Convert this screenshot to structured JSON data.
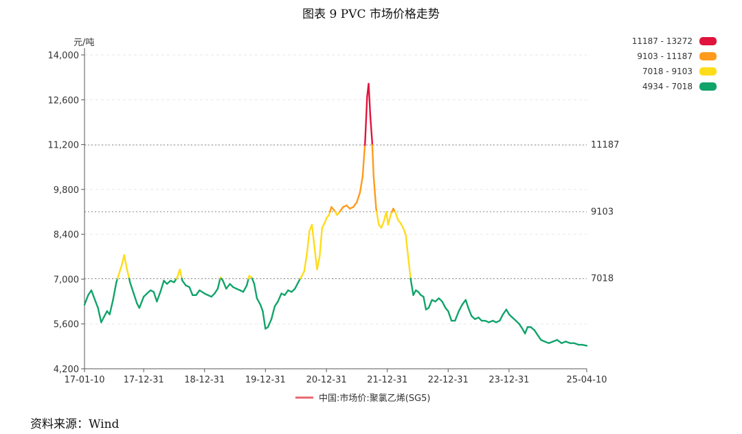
{
  "title": "图表 9    PVC 市场价格走势",
  "source": "资料来源：Wind",
  "chart_data": {
    "type": "line",
    "unit_label": "元/吨",
    "xlabel": "",
    "ylabel": "",
    "ylim": [
      4200,
      14000
    ],
    "yticks": [
      4200,
      5600,
      7000,
      8400,
      9800,
      11200,
      12600,
      14000
    ],
    "ytick_labels": [
      "4,200",
      "5,600",
      "7,000",
      "8,400",
      "9,800",
      "11,200",
      "12,600",
      "14,000"
    ],
    "x_range": [
      "2017-01-10",
      "2025-04-10"
    ],
    "xticks": [
      "2017-01-10",
      "2017-12-31",
      "2018-12-31",
      "2019-12-31",
      "2020-12-31",
      "2021-12-31",
      "2022-12-31",
      "2023-12-31",
      "2025-04-10"
    ],
    "xtick_labels": [
      "17-01-10",
      "17-12-31",
      "18-12-31",
      "19-12-31",
      "20-12-31",
      "21-12-31",
      "22-12-31",
      "23-12-31",
      "25-04-10"
    ],
    "grid": true,
    "legend_placement": "bottom",
    "series": [
      {
        "name": "中国:市场价:聚氯乙烯(SG5)",
        "color": "#e8646e",
        "points": [
          [
            "2017-01-10",
            6200
          ],
          [
            "2017-02-01",
            6500
          ],
          [
            "2017-02-20",
            6650
          ],
          [
            "2017-03-10",
            6400
          ],
          [
            "2017-04-01",
            6100
          ],
          [
            "2017-04-20",
            5650
          ],
          [
            "2017-05-10",
            5850
          ],
          [
            "2017-05-25",
            6000
          ],
          [
            "2017-06-10",
            5900
          ],
          [
            "2017-06-30",
            6350
          ],
          [
            "2017-07-20",
            6900
          ],
          [
            "2017-08-10",
            7250
          ],
          [
            "2017-08-25",
            7500
          ],
          [
            "2017-09-05",
            7750
          ],
          [
            "2017-09-20",
            7350
          ],
          [
            "2017-10-10",
            6900
          ],
          [
            "2017-11-01",
            6550
          ],
          [
            "2017-11-20",
            6250
          ],
          [
            "2017-12-05",
            6100
          ],
          [
            "2017-12-31",
            6450
          ],
          [
            "2018-01-20",
            6550
          ],
          [
            "2018-02-10",
            6650
          ],
          [
            "2018-03-01",
            6600
          ],
          [
            "2018-03-20",
            6300
          ],
          [
            "2018-04-10",
            6600
          ],
          [
            "2018-05-01",
            6950
          ],
          [
            "2018-05-20",
            6850
          ],
          [
            "2018-06-10",
            6950
          ],
          [
            "2018-07-01",
            6900
          ],
          [
            "2018-07-20",
            7050
          ],
          [
            "2018-08-05",
            7300
          ],
          [
            "2018-08-20",
            6950
          ],
          [
            "2018-09-10",
            6800
          ],
          [
            "2018-10-01",
            6750
          ],
          [
            "2018-10-20",
            6500
          ],
          [
            "2018-11-10",
            6500
          ],
          [
            "2018-12-01",
            6650
          ],
          [
            "2018-12-31",
            6550
          ],
          [
            "2019-01-20",
            6500
          ],
          [
            "2019-02-10",
            6450
          ],
          [
            "2019-03-01",
            6550
          ],
          [
            "2019-03-20",
            6700
          ],
          [
            "2019-04-05",
            7050
          ],
          [
            "2019-04-20",
            6950
          ],
          [
            "2019-05-10",
            6700
          ],
          [
            "2019-06-01",
            6850
          ],
          [
            "2019-06-20",
            6750
          ],
          [
            "2019-07-10",
            6700
          ],
          [
            "2019-08-01",
            6650
          ],
          [
            "2019-08-20",
            6600
          ],
          [
            "2019-09-10",
            6800
          ],
          [
            "2019-09-25",
            7100
          ],
          [
            "2019-10-10",
            7050
          ],
          [
            "2019-10-25",
            6850
          ],
          [
            "2019-11-10",
            6400
          ],
          [
            "2019-12-01",
            6200
          ],
          [
            "2019-12-15",
            6000
          ],
          [
            "2019-12-31",
            5450
          ],
          [
            "2020-01-15",
            5500
          ],
          [
            "2020-02-05",
            5750
          ],
          [
            "2020-02-25",
            6150
          ],
          [
            "2020-03-15",
            6300
          ],
          [
            "2020-04-05",
            6550
          ],
          [
            "2020-04-25",
            6500
          ],
          [
            "2020-05-15",
            6650
          ],
          [
            "2020-06-05",
            6600
          ],
          [
            "2020-06-25",
            6700
          ],
          [
            "2020-07-15",
            6900
          ],
          [
            "2020-08-05",
            7100
          ],
          [
            "2020-08-20",
            7250
          ],
          [
            "2020-09-05",
            7800
          ],
          [
            "2020-09-20",
            8500
          ],
          [
            "2020-10-05",
            8700
          ],
          [
            "2020-10-20",
            8000
          ],
          [
            "2020-11-05",
            7300
          ],
          [
            "2020-11-20",
            7700
          ],
          [
            "2020-12-05",
            8600
          ],
          [
            "2020-12-20",
            8750
          ],
          [
            "2020-12-31",
            8900
          ],
          [
            "2021-01-15",
            9000
          ],
          [
            "2021-01-30",
            9250
          ],
          [
            "2021-02-15",
            9150
          ],
          [
            "2021-03-05",
            9000
          ],
          [
            "2021-03-20",
            9100
          ],
          [
            "2021-04-10",
            9250
          ],
          [
            "2021-05-01",
            9300
          ],
          [
            "2021-05-20",
            9200
          ],
          [
            "2021-06-10",
            9250
          ],
          [
            "2021-07-01",
            9400
          ],
          [
            "2021-07-20",
            9700
          ],
          [
            "2021-08-05",
            10200
          ],
          [
            "2021-08-20",
            11300
          ],
          [
            "2021-09-01",
            12700
          ],
          [
            "2021-09-10",
            13100
          ],
          [
            "2021-09-20",
            12100
          ],
          [
            "2021-10-01",
            11300
          ],
          [
            "2021-10-10",
            10200
          ],
          [
            "2021-10-25",
            9200
          ],
          [
            "2021-11-10",
            8700
          ],
          [
            "2021-11-25",
            8600
          ],
          [
            "2021-12-10",
            8800
          ],
          [
            "2021-12-25",
            9100
          ],
          [
            "2022-01-05",
            8700
          ],
          [
            "2022-01-20",
            9000
          ],
          [
            "2022-02-05",
            9200
          ],
          [
            "2022-02-20",
            9050
          ],
          [
            "2022-03-05",
            8850
          ],
          [
            "2022-03-20",
            8750
          ],
          [
            "2022-04-05",
            8600
          ],
          [
            "2022-04-20",
            8400
          ],
          [
            "2022-05-05",
            7700
          ],
          [
            "2022-05-20",
            7000
          ],
          [
            "2022-06-05",
            6500
          ],
          [
            "2022-06-20",
            6650
          ],
          [
            "2022-07-05",
            6600
          ],
          [
            "2022-07-20",
            6500
          ],
          [
            "2022-08-05",
            6450
          ],
          [
            "2022-08-20",
            6050
          ],
          [
            "2022-09-05",
            6100
          ],
          [
            "2022-09-25",
            6350
          ],
          [
            "2022-10-15",
            6300
          ],
          [
            "2022-11-05",
            6400
          ],
          [
            "2022-11-25",
            6300
          ],
          [
            "2022-12-15",
            6100
          ],
          [
            "2022-12-31",
            6000
          ],
          [
            "2023-01-20",
            5700
          ],
          [
            "2023-02-10",
            5700
          ],
          [
            "2023-03-05",
            6000
          ],
          [
            "2023-03-25",
            6200
          ],
          [
            "2023-04-15",
            6350
          ],
          [
            "2023-05-01",
            6100
          ],
          [
            "2023-05-20",
            5850
          ],
          [
            "2023-06-10",
            5750
          ],
          [
            "2023-07-01",
            5800
          ],
          [
            "2023-07-20",
            5700
          ],
          [
            "2023-08-10",
            5700
          ],
          [
            "2023-09-01",
            5650
          ],
          [
            "2023-09-25",
            5700
          ],
          [
            "2023-10-15",
            5650
          ],
          [
            "2023-11-05",
            5700
          ],
          [
            "2023-11-25",
            5900
          ],
          [
            "2023-12-15",
            6050
          ],
          [
            "2023-12-31",
            5900
          ],
          [
            "2024-01-20",
            5800
          ],
          [
            "2024-02-10",
            5700
          ],
          [
            "2024-03-01",
            5600
          ],
          [
            "2024-03-20",
            5450
          ],
          [
            "2024-04-05",
            5300
          ],
          [
            "2024-04-20",
            5500
          ],
          [
            "2024-05-10",
            5500
          ],
          [
            "2024-06-01",
            5400
          ],
          [
            "2024-06-20",
            5250
          ],
          [
            "2024-07-10",
            5100
          ],
          [
            "2024-08-01",
            5050
          ],
          [
            "2024-08-25",
            5000
          ],
          [
            "2024-09-20",
            5050
          ],
          [
            "2024-10-15",
            5100
          ],
          [
            "2024-11-10",
            5000
          ],
          [
            "2024-12-05",
            5050
          ],
          [
            "2025-01-01",
            5000
          ],
          [
            "2025-01-25",
            5000
          ],
          [
            "2025-02-20",
            4950
          ],
          [
            "2025-03-15",
            4950
          ],
          [
            "2025-04-10",
            4920
          ]
        ]
      }
    ],
    "visual_map": {
      "placement": "top-right",
      "pieces": [
        {
          "label": "11187 - 13272",
          "min": 11187,
          "max": 13272,
          "color": "#e0133d"
        },
        {
          "label": "9103 - 11187",
          "min": 9103,
          "max": 11187,
          "color": "#ff9a1a"
        },
        {
          "label": "7018 - 9103",
          "min": 7018,
          "max": 9103,
          "color": "#ffdc1a"
        },
        {
          "label": "4934 - 7018",
          "min": 4934,
          "max": 7018,
          "color": "#10a36a"
        }
      ]
    },
    "mark_lines": [
      {
        "value": 11187,
        "label": "11187"
      },
      {
        "value": 9103,
        "label": "9103"
      },
      {
        "value": 7018,
        "label": "7018"
      }
    ]
  }
}
